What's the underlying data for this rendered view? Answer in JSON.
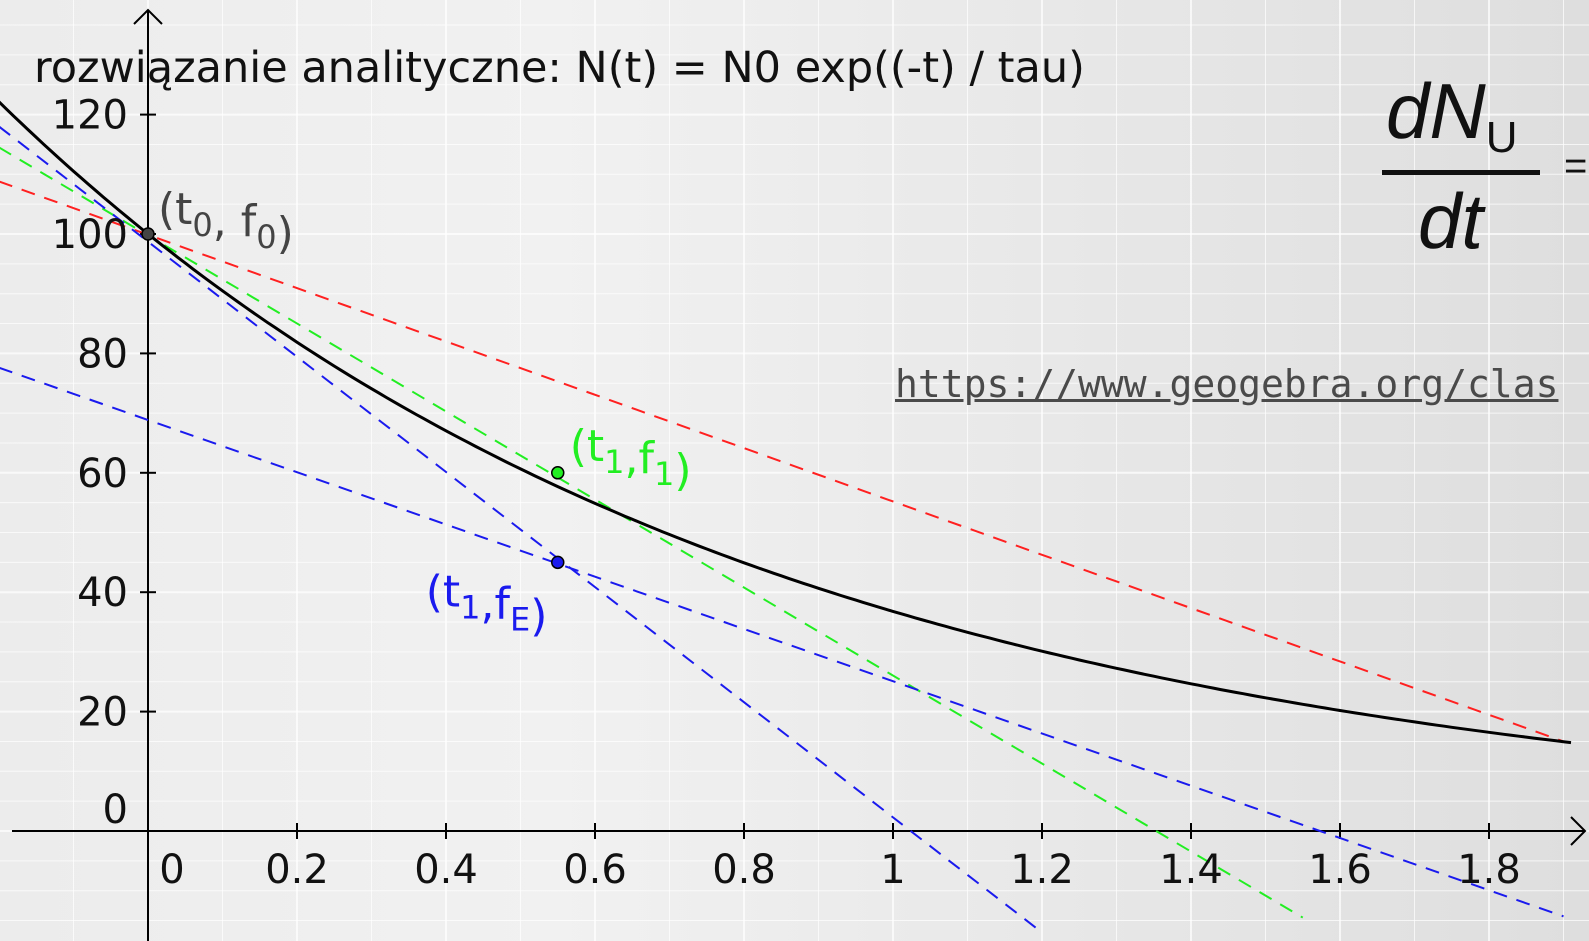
{
  "chart_data": {
    "type": "line",
    "title": "rozwiązanie analityczne: N(t) = N0 exp((-t) / tau)",
    "xlabel": "",
    "ylabel": "",
    "xlim": [
      -0.2,
      2.2
    ],
    "ylim": [
      -17,
      137
    ],
    "x_ticks": [
      0,
      0.2,
      0.4,
      0.6,
      0.8,
      1,
      1.2,
      1.4,
      1.6,
      1.8
    ],
    "x_tick_labels": [
      "0",
      "0.2",
      "0.4",
      "0.6",
      "0.8",
      "1",
      "1.2",
      "1.4",
      "1.6",
      "1.8"
    ],
    "y_ticks": [
      0,
      20,
      40,
      60,
      80,
      100,
      120
    ],
    "y_tick_labels": [
      "0",
      "20",
      "40",
      "60",
      "80",
      "100",
      "120"
    ],
    "grid": true,
    "curve": {
      "function": "N0 * exp(-t / tau)",
      "N0": 100,
      "tau": 1,
      "color": "#000000"
    },
    "lines": [
      {
        "color": "#ff2020",
        "dash": true,
        "x": [
          -0.2,
          1.9
        ],
        "y": [
          108.8,
          15.0
        ]
      },
      {
        "color": "#22ee22",
        "dash": true,
        "x": [
          -0.2,
          1.55
        ],
        "y": [
          114.5,
          -14.5
        ]
      },
      {
        "color": "#1a1aee",
        "dash": true,
        "x": [
          -0.2,
          1.2
        ],
        "y": [
          118.0,
          -17.0
        ]
      },
      {
        "color": "#1a1aee",
        "dash": true,
        "x": [
          -0.2,
          1.9
        ],
        "y": [
          77.6,
          -14.3
        ]
      }
    ],
    "points": [
      {
        "x": 0,
        "y": 100,
        "color": "#444444",
        "label_main": "(t",
        "label_sub": "0",
        "label_mid": ", f",
        "label_sub2": "0",
        "label_end": ")"
      },
      {
        "x": 0.55,
        "y": 60,
        "color": "#22ee22",
        "label_main": "(t",
        "label_sub": "1",
        "label_mid": ",f",
        "label_sub2": "1",
        "label_end": ")"
      },
      {
        "x": 0.55,
        "y": 45,
        "color": "#1a1aee",
        "label_main": "(t",
        "label_sub": "1",
        "label_mid": ",f",
        "label_sub2": "E",
        "label_end": ")"
      }
    ]
  },
  "formula": {
    "numerator": "dN",
    "numerator_sub": "U",
    "denominator": "dt",
    "trailing": "="
  },
  "link_text": "https://www.geogebra.org/clas"
}
